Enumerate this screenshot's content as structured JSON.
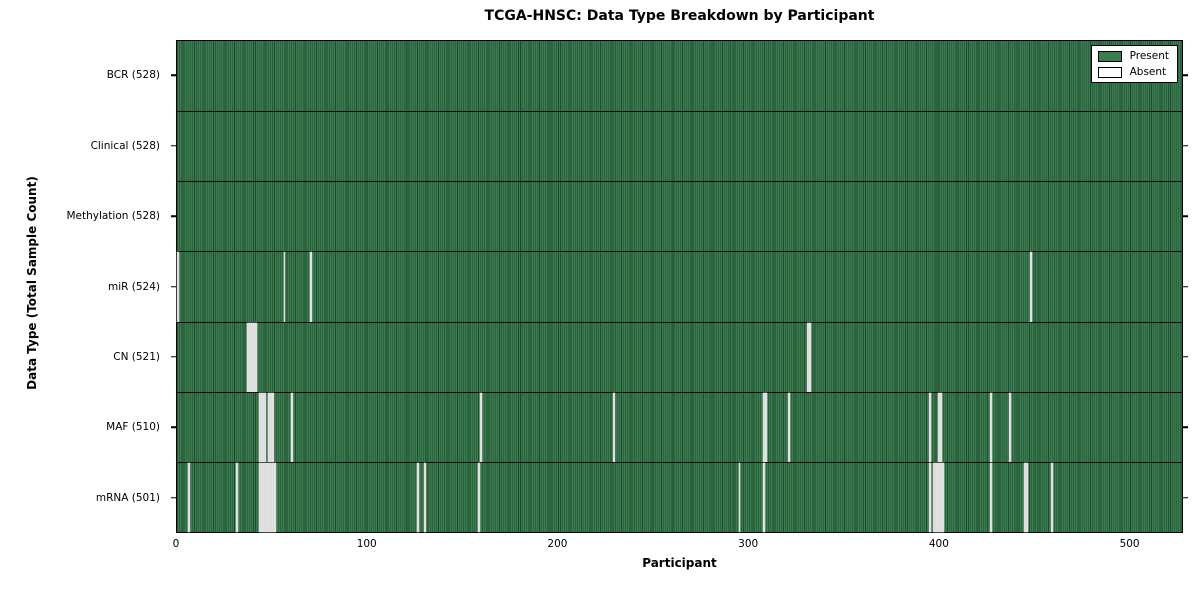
{
  "title": "TCGA-HNSC: Data Type Breakdown by Participant",
  "chart_data": {
    "type": "heatmap",
    "title": "TCGA-HNSC: Data Type Breakdown by Participant",
    "xlabel": "Participant",
    "ylabel": "Data Type (Total Sample Count)",
    "n_participants": 528,
    "x_ticks": [
      0,
      100,
      200,
      300,
      400,
      500
    ],
    "xlim": [
      0,
      528
    ],
    "grid": "row-dividers",
    "legend_position": "upper right",
    "legend": [
      {
        "label": "Present",
        "color": "#3c7d50"
      },
      {
        "label": "Absent",
        "color": "#ffffff"
      }
    ],
    "colors": {
      "present_fill": "#3c7d50",
      "present_edge": "#1d4b2f",
      "absent_fill": "#e2e2e2",
      "spine": "#000000",
      "background": "#ffffff"
    },
    "rows": [
      {
        "name": "BCR",
        "label": "BCR (528)",
        "count": 528,
        "absent": []
      },
      {
        "name": "Clinical",
        "label": "Clinical (528)",
        "count": 528,
        "absent": []
      },
      {
        "name": "Methylation",
        "label": "Methylation (528)",
        "count": 528,
        "absent": []
      },
      {
        "name": "miR",
        "label": "miR (524)",
        "count": 524,
        "absent": [
          0,
          56,
          70,
          448
        ]
      },
      {
        "name": "CN",
        "label": "CN (521)",
        "count": 521,
        "absent": [
          37,
          38,
          39,
          40,
          41,
          331,
          332
        ]
      },
      {
        "name": "MAF",
        "label": "MAF (510)",
        "count": 510,
        "absent": [
          43,
          44,
          45,
          46,
          48,
          49,
          50,
          60,
          159,
          229,
          308,
          309,
          321,
          395,
          400,
          401,
          427,
          437
        ]
      },
      {
        "name": "mRNA",
        "label": "mRNA (501)",
        "count": 501,
        "absent": [
          6,
          31,
          43,
          44,
          45,
          46,
          47,
          48,
          49,
          50,
          51,
          126,
          130,
          158,
          295,
          308,
          395,
          397,
          398,
          399,
          400,
          401,
          402,
          427,
          445,
          446,
          459
        ]
      }
    ]
  }
}
